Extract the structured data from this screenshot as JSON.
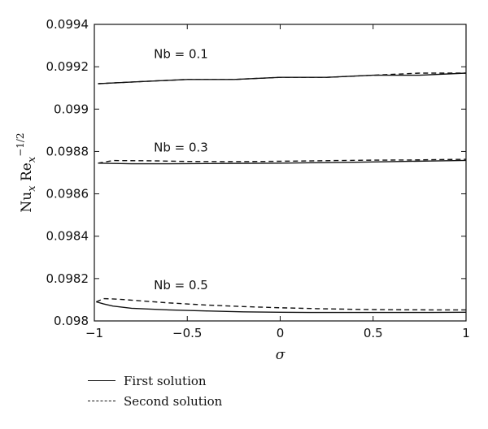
{
  "chart_data": {
    "type": "line",
    "xlabel": "σ",
    "ylabel": "Nu_x Re_x^{-1/2}",
    "xlim": [
      -1,
      1
    ],
    "ylim": [
      0.098,
      0.0994
    ],
    "x_ticks": [
      "−1",
      "−0.5",
      "0",
      "0.5",
      "1"
    ],
    "x_tick_values": [
      -1,
      -0.5,
      0,
      0.5,
      1
    ],
    "y_ticks": [
      "0.098",
      "0.0982",
      "0.0984",
      "0.0986",
      "0.0988",
      "0.099",
      "0.0992",
      "0.0994"
    ],
    "y_tick_values": [
      0.098,
      0.0982,
      0.0984,
      0.0986,
      0.0988,
      0.099,
      0.0992,
      0.0994
    ],
    "grid": false,
    "legend": {
      "placement": "below",
      "entries": [
        {
          "label": "First solution",
          "style": "solid"
        },
        {
          "label": "Second solution",
          "style": "dashed"
        }
      ]
    },
    "series": [
      {
        "name": "Nb = 0.1",
        "solution": "First solution",
        "style": "solid",
        "x": [
          -0.98,
          -0.75,
          -0.5,
          -0.25,
          0,
          0.25,
          0.5,
          0.75,
          1
        ],
        "y": [
          0.09912,
          0.09913,
          0.09914,
          0.09914,
          0.09915,
          0.09915,
          0.09916,
          0.09916,
          0.09917
        ]
      },
      {
        "name": "Nb = 0.1",
        "solution": "Second solution",
        "style": "dashed",
        "x": [
          -0.98,
          -0.75,
          -0.5,
          -0.25,
          0,
          0.25,
          0.5,
          0.75,
          1
        ],
        "y": [
          0.09912,
          0.09913,
          0.09914,
          0.09914,
          0.09915,
          0.09915,
          0.09916,
          0.09917,
          0.09917
        ]
      },
      {
        "name": "Nb = 0.3",
        "solution": "First solution",
        "style": "solid",
        "x": [
          -0.98,
          -0.8,
          -0.6,
          -0.4,
          -0.2,
          0,
          0.2,
          0.4,
          0.6,
          0.8,
          1
        ],
        "y": [
          0.098745,
          0.098742,
          0.098742,
          0.098743,
          0.098744,
          0.098745,
          0.098747,
          0.098749,
          0.098752,
          0.098755,
          0.098758
        ]
      },
      {
        "name": "Nb = 0.3",
        "solution": "Second solution",
        "style": "dashed",
        "x": [
          -0.98,
          -0.9,
          -0.7,
          -0.5,
          -0.3,
          -0.1,
          0.1,
          0.3,
          0.5,
          0.7,
          0.9,
          1
        ],
        "y": [
          0.098745,
          0.098757,
          0.098756,
          0.098753,
          0.098752,
          0.098753,
          0.098755,
          0.098757,
          0.098759,
          0.09876,
          0.098762,
          0.098763
        ]
      },
      {
        "name": "Nb = 0.5",
        "solution": "First solution",
        "style": "solid",
        "x": [
          -0.99,
          -0.95,
          -0.9,
          -0.8,
          -0.6,
          -0.4,
          -0.2,
          0,
          0.2,
          0.4,
          0.6,
          0.8,
          1
        ],
        "y": [
          0.09809,
          0.09808,
          0.09807,
          0.09806,
          0.098052,
          0.098047,
          0.098043,
          0.098041,
          0.09804,
          0.09804,
          0.09804,
          0.09804,
          0.098041
        ]
      },
      {
        "name": "Nb = 0.5",
        "solution": "Second solution",
        "style": "dashed",
        "x": [
          -0.99,
          -0.95,
          -0.9,
          -0.8,
          -0.6,
          -0.4,
          -0.2,
          0,
          0.2,
          0.4,
          0.6,
          0.8,
          1
        ],
        "y": [
          0.09809,
          0.098105,
          0.098104,
          0.098098,
          0.098085,
          0.098075,
          0.098068,
          0.098062,
          0.098058,
          0.098055,
          0.098053,
          0.098052,
          0.098052
        ]
      }
    ],
    "annotations": [
      {
        "text": "Nb = 0.1",
        "x": -0.68,
        "y": 0.09924
      },
      {
        "text": "Nb = 0.3",
        "x": -0.68,
        "y": 0.0988
      },
      {
        "text": "Nb = 0.5",
        "x": -0.68,
        "y": 0.09815
      }
    ]
  }
}
